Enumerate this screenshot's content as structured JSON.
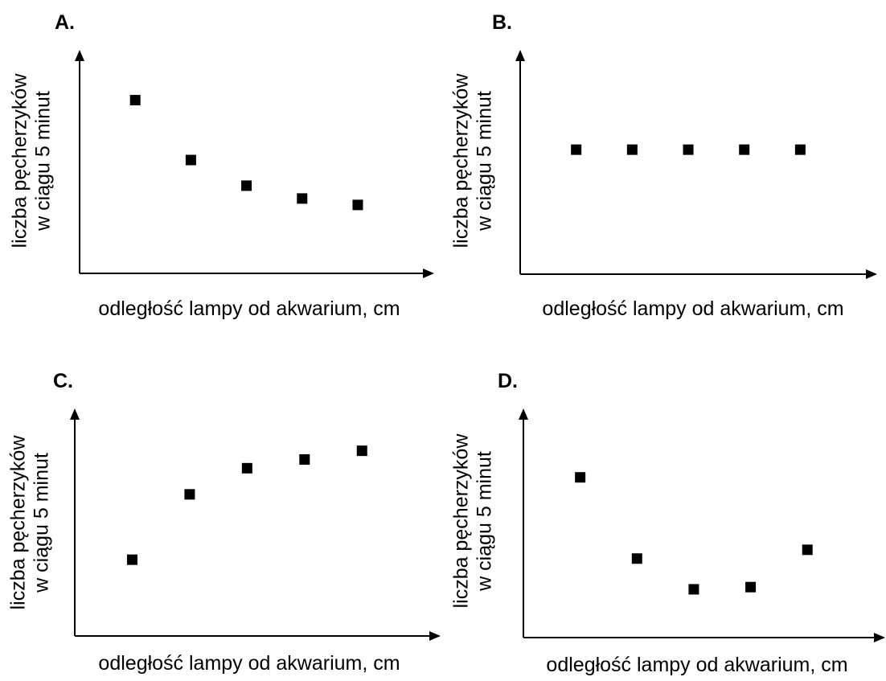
{
  "chart_data": [
    {
      "type": "scatter",
      "panel_label": "A.",
      "xlabel": "odległość lampy od akwarium, cm",
      "ylabel_line1": "liczba pęcherzyków",
      "ylabel_line2": "w ciągu 5 minut",
      "x": [
        1,
        2,
        3,
        4,
        5
      ],
      "y": [
        81,
        53,
        41,
        35,
        32
      ],
      "xlim": [
        0,
        6.2
      ],
      "ylim": [
        0,
        100
      ],
      "marker_color": "#000000"
    },
    {
      "type": "scatter",
      "panel_label": "B.",
      "xlabel": "odległość lampy od akwarium, cm",
      "ylabel_line1": "liczba pęcherzyków",
      "ylabel_line2": "w ciągu 5 minut",
      "x": [
        1,
        2,
        3,
        4,
        5
      ],
      "y": [
        58,
        58,
        58,
        58,
        58
      ],
      "xlim": [
        0,
        6.2
      ],
      "ylim": [
        0,
        100
      ],
      "marker_color": "#000000"
    },
    {
      "type": "scatter",
      "panel_label": "C.",
      "xlabel": "odległość lampy od akwarium, cm",
      "ylabel_line1": "liczba pęcherzyków",
      "ylabel_line2": "w ciągu 5 minut",
      "x": [
        1,
        2,
        3,
        4,
        5
      ],
      "y": [
        35,
        65,
        77,
        81,
        85
      ],
      "xlim": [
        0,
        6.2
      ],
      "ylim": [
        0,
        100
      ],
      "marker_color": "#000000"
    },
    {
      "type": "scatter",
      "panel_label": "D.",
      "xlabel": "odległość lampy od akwarium, cm",
      "ylabel_line1": "liczba pęcherzyków",
      "ylabel_line2": "w ciągu 5 minut",
      "x": [
        1,
        2,
        3,
        4,
        5
      ],
      "y": [
        73,
        36,
        22,
        23,
        40
      ],
      "xlim": [
        0,
        6.2
      ],
      "ylim": [
        0,
        100
      ],
      "marker_color": "#000000"
    }
  ]
}
